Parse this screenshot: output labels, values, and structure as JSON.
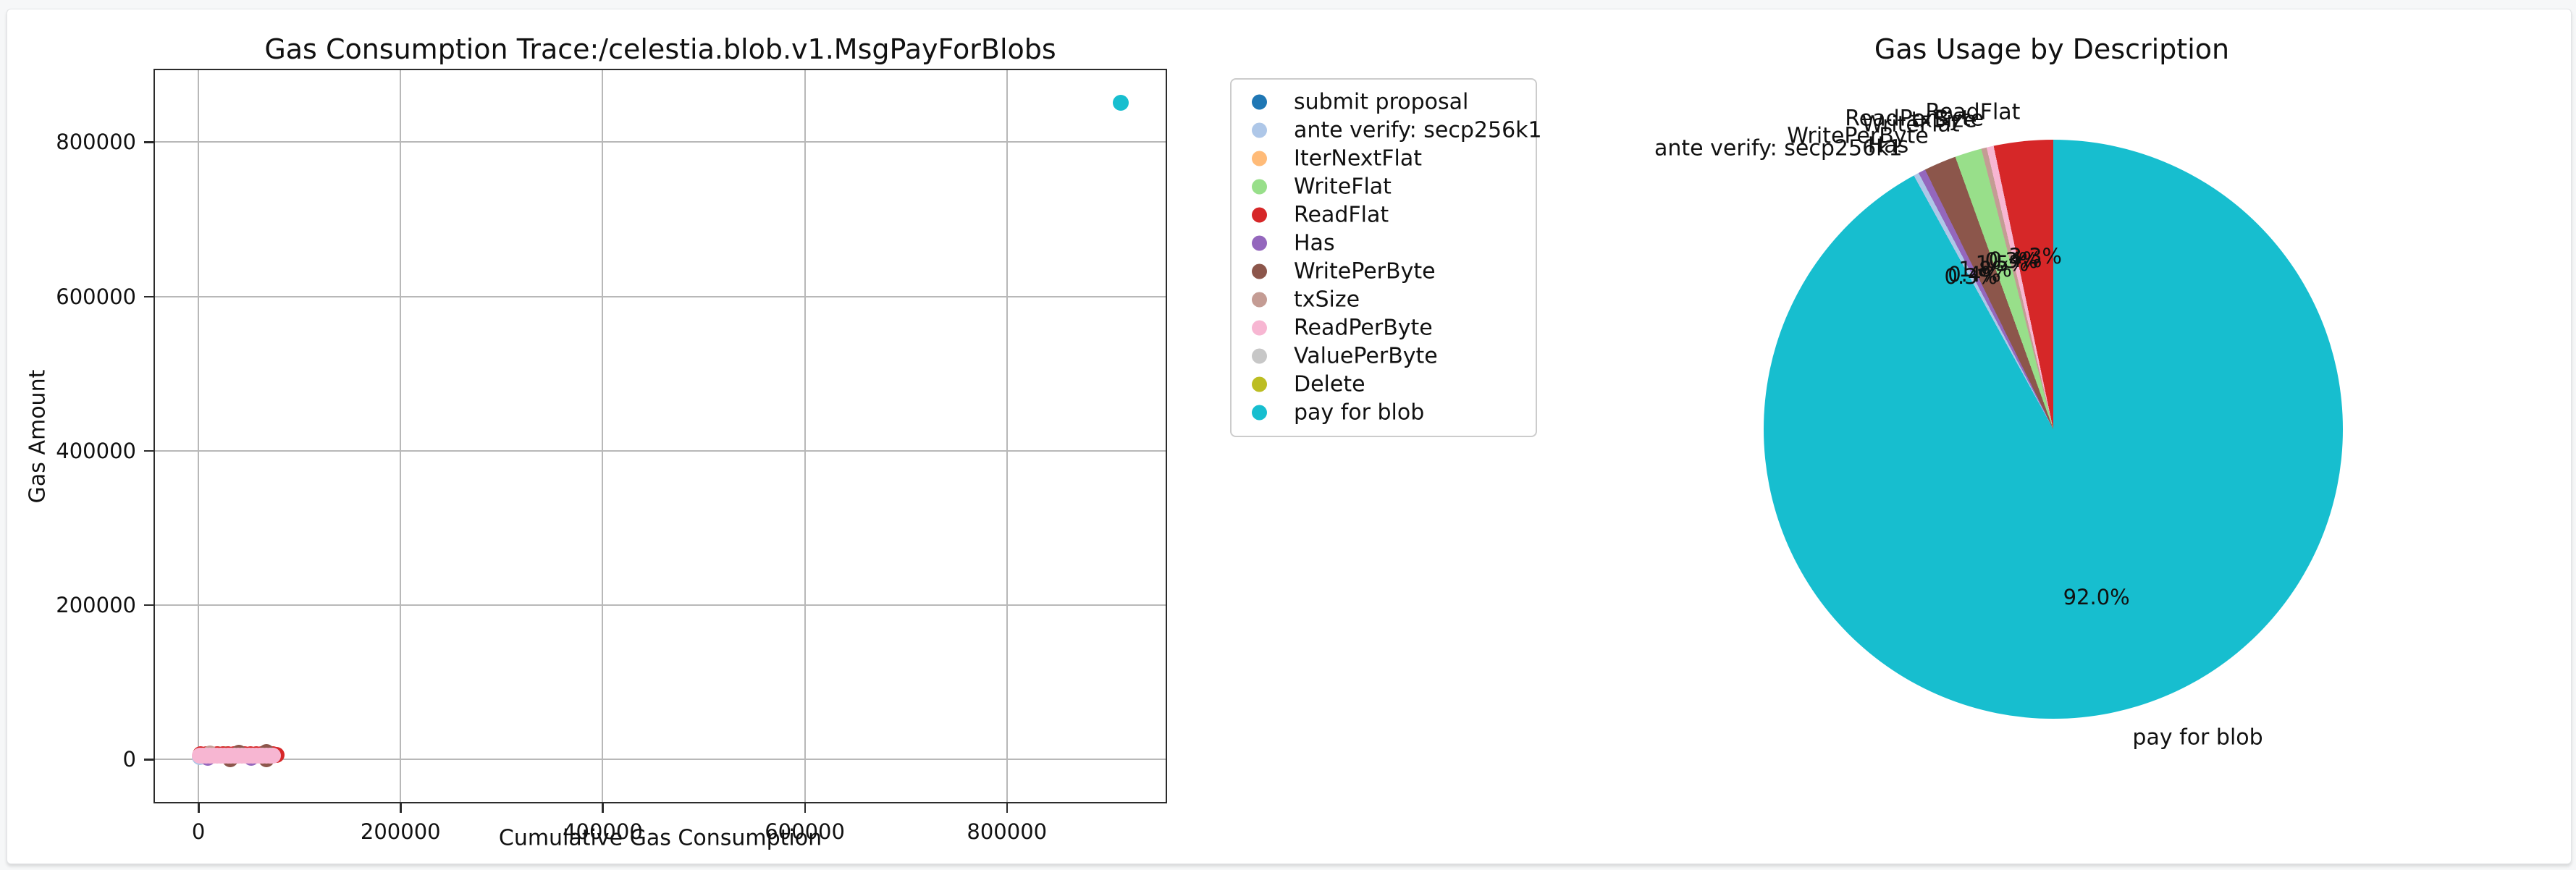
{
  "page": {
    "background_color": "#f6f7f8",
    "card_color": "#ffffff"
  },
  "legend": {
    "entries": [
      {
        "label": "submit proposal",
        "color": "#1f77b4"
      },
      {
        "label": "ante verify: secp256k1",
        "color": "#aec7e8"
      },
      {
        "label": "IterNextFlat",
        "color": "#ffbb78"
      },
      {
        "label": "WriteFlat",
        "color": "#98df8a"
      },
      {
        "label": "ReadFlat",
        "color": "#d62728"
      },
      {
        "label": "Has",
        "color": "#9467bd"
      },
      {
        "label": "WritePerByte",
        "color": "#8c564b"
      },
      {
        "label": "txSize",
        "color": "#c49c94"
      },
      {
        "label": "ReadPerByte",
        "color": "#f7b6d2"
      },
      {
        "label": "ValuePerByte",
        "color": "#c7c7c7"
      },
      {
        "label": "Delete",
        "color": "#bcbd22"
      },
      {
        "label": "pay for blob",
        "color": "#17becf"
      }
    ]
  },
  "chart_data": [
    {
      "type": "scatter",
      "title": "Gas Consumption Trace:/celestia.blob.v1.MsgPayForBlobs",
      "xlabel": "Cumulative Gas Consumption",
      "ylabel": "Gas Amount",
      "xticks": [
        0,
        200000,
        400000,
        600000,
        800000
      ],
      "yticks": [
        0,
        200000,
        400000,
        600000,
        800000
      ],
      "xlim": [
        -44500,
        958500
      ],
      "ylim": [
        -57000,
        895000
      ],
      "grid": true,
      "marker_diameter_px": 22,
      "series": [
        {
          "name": "submit proposal",
          "color": "#1f77b4",
          "points": []
        },
        {
          "name": "ante verify: secp256k1",
          "color": "#aec7e8",
          "points": [
            [
              1400,
              2800
            ]
          ]
        },
        {
          "name": "IterNextFlat",
          "color": "#ffbb78",
          "points": []
        },
        {
          "name": "WriteFlat",
          "color": "#98df8a",
          "points": [
            [
              19300,
              6500
            ],
            [
              26500,
              6500
            ],
            [
              44000,
              6000
            ]
          ]
        },
        {
          "name": "ReadFlat",
          "color": "#d62728",
          "points": [
            [
              2000,
              7000
            ],
            [
              7500,
              7000
            ],
            [
              13000,
              7000
            ],
            [
              18500,
              7000
            ],
            [
              24000,
              7000
            ],
            [
              29500,
              7000
            ],
            [
              35000,
              7000
            ],
            [
              40500,
              7000
            ],
            [
              46000,
              7000
            ],
            [
              51500,
              7000
            ],
            [
              57000,
              7000
            ],
            [
              62500,
              7000
            ],
            [
              68000,
              7000
            ],
            [
              73500,
              7000
            ],
            [
              77500,
              5500
            ]
          ]
        },
        {
          "name": "Has",
          "color": "#9467bd",
          "points": [
            [
              9000,
              2000
            ],
            [
              52000,
              2200
            ]
          ]
        },
        {
          "name": "WritePerByte",
          "color": "#8c564b",
          "points": [
            [
              40000,
              9000
            ],
            [
              67000,
              9500
            ],
            [
              31500,
              0
            ],
            [
              67500,
              0
            ]
          ]
        },
        {
          "name": "txSize",
          "color": "#c49c94",
          "points": [
            [
              11500,
              7500
            ]
          ]
        },
        {
          "name": "ReadPerByte",
          "color": "#f7b6d2",
          "points": [
            [
              1000,
              4500
            ],
            [
              4500,
              4500
            ],
            [
              8000,
              4500
            ],
            [
              11500,
              4500
            ],
            [
              15000,
              4500
            ],
            [
              18500,
              4500
            ],
            [
              22000,
              4500
            ],
            [
              25500,
              4500
            ],
            [
              29000,
              4500
            ],
            [
              32500,
              4500
            ],
            [
              36000,
              4500
            ],
            [
              39500,
              4500
            ],
            [
              43000,
              4500
            ],
            [
              46500,
              4500
            ],
            [
              50000,
              4500
            ],
            [
              53500,
              4500
            ],
            [
              57000,
              4500
            ],
            [
              60500,
              4500
            ],
            [
              64000,
              4500
            ],
            [
              67500,
              4500
            ],
            [
              71000,
              4500
            ],
            [
              74000,
              4500
            ]
          ]
        },
        {
          "name": "ValuePerByte",
          "color": "#c7c7c7",
          "points": []
        },
        {
          "name": "Delete",
          "color": "#bcbd22",
          "points": []
        },
        {
          "name": "pay for blob",
          "color": "#17becf",
          "points": [
            [
              913000,
              851000
            ]
          ]
        }
      ]
    },
    {
      "type": "pie",
      "title": "Gas Usage by Description",
      "start_angle": 90,
      "direction": "counterclockwise",
      "label_distance": 1.1,
      "pct_distance": 0.6,
      "slices": [
        {
          "label": "ReadFlat",
          "value": 3.3,
          "pct_label": "3.3%",
          "color": "#d62728"
        },
        {
          "label": "ReadPerByte",
          "value": 0.4,
          "pct_label": "0.4%",
          "color": "#f7b6d2"
        },
        {
          "label": "txSize",
          "value": 0.3,
          "pct_label": "0.3%",
          "color": "#c49c94"
        },
        {
          "label": "WriteFlat",
          "value": 1.5,
          "pct_label": "1.5%",
          "color": "#98df8a"
        },
        {
          "label": "WritePerByte",
          "value": 1.8,
          "pct_label": "1.8%",
          "color": "#8c564b"
        },
        {
          "label": "Has",
          "value": 0.4,
          "pct_label": "0.4%",
          "color": "#9467bd"
        },
        {
          "label": "ante verify: secp256k1",
          "value": 0.3,
          "pct_label": "0.3%",
          "color": "#aec7e8"
        },
        {
          "label": "pay for blob",
          "value": 92.0,
          "pct_label": "92.0%",
          "color": "#17becf"
        }
      ]
    }
  ]
}
